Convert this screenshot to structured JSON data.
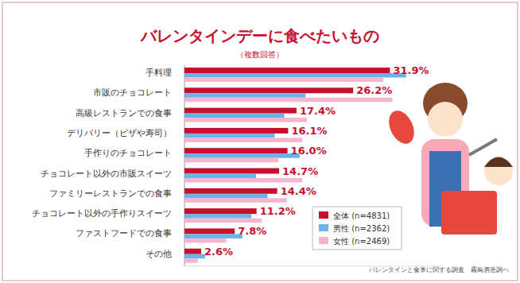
{
  "chart_data": {
    "type": "bar",
    "orientation": "horizontal",
    "title": "バレンタインデーに食べたいもの",
    "subtitle": "（複数回答）",
    "source": "バレンタインと食事に関する調査　霧島酒造調べ",
    "categories": [
      "手料理",
      "市販のチョコレート",
      "高級レストランでの食事",
      "デリバリー（ピザや寿司）",
      "手作りのチョコレート",
      "チョコレート以外の市販スイーツ",
      "ファミリーレストランでの食事",
      "チョコレート以外の手作りスイーツ",
      "ファストフードでの食事",
      "その他"
    ],
    "series": [
      {
        "name": "全体 (n=4831)",
        "color": "#c8102e",
        "data_labels": true,
        "values": [
          31.9,
          26.2,
          17.4,
          16.1,
          16.0,
          14.7,
          14.4,
          11.2,
          7.8,
          2.6
        ],
        "value_labels": [
          "31.9%",
          "26.2%",
          "17.4%",
          "16.1%",
          "16.0%",
          "14.7%",
          "14.4%",
          "11.2%",
          "7.8%",
          "2.6%"
        ]
      },
      {
        "name": "男性 (n=2362)",
        "color": "#6ab4e8",
        "values": [
          34.4,
          18.8,
          15.5,
          14.0,
          17.9,
          11.1,
          12.9,
          10.4,
          9.0,
          3.2
        ]
      },
      {
        "name": "女性 (n=2469)",
        "color": "#f4b6cf",
        "values": [
          30.9,
          32.3,
          19.0,
          18.3,
          14.6,
          18.3,
          15.9,
          12.0,
          6.5,
          2.1
        ]
      }
    ],
    "xlim": [
      0,
      40
    ],
    "tick_labels": false,
    "grid": false,
    "legend": "bottom-right"
  }
}
